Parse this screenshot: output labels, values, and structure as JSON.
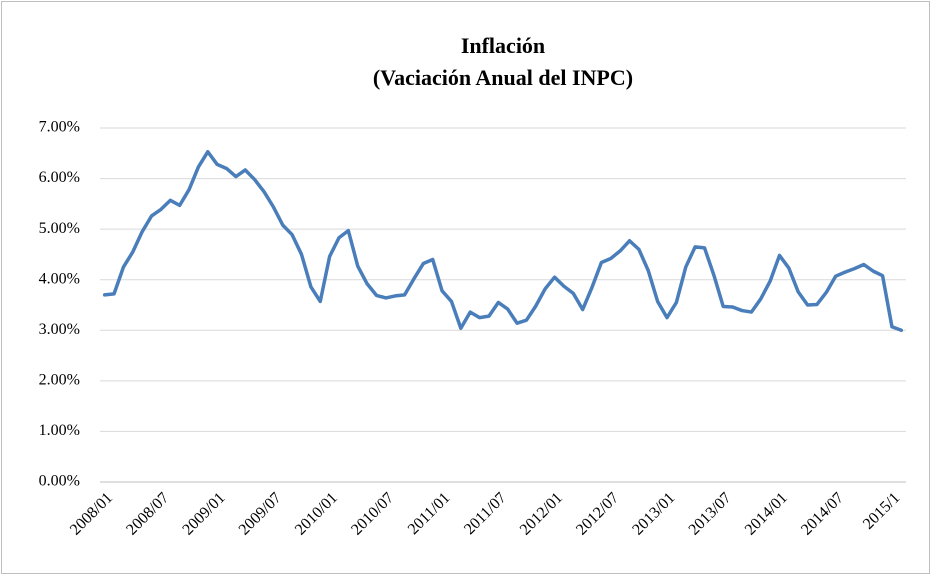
{
  "chart_data": {
    "type": "line",
    "title": "Inflación",
    "subtitle": "(Vaciación Anual del INPC)",
    "categories": [
      "2008/01",
      null,
      null,
      null,
      null,
      null,
      "2008/07",
      null,
      null,
      null,
      null,
      null,
      "2009/01",
      null,
      null,
      null,
      null,
      null,
      "2009/07",
      null,
      null,
      null,
      null,
      null,
      "2010/01",
      null,
      null,
      null,
      null,
      null,
      "2010/07",
      null,
      null,
      null,
      null,
      null,
      "2011/01",
      null,
      null,
      null,
      null,
      null,
      "2011/07",
      null,
      null,
      null,
      null,
      null,
      "2012/01",
      null,
      null,
      null,
      null,
      null,
      "2012/07",
      null,
      null,
      null,
      null,
      null,
      "2013/01",
      null,
      null,
      null,
      null,
      null,
      "2013/07",
      null,
      null,
      null,
      null,
      null,
      "2014/01",
      null,
      null,
      null,
      null,
      null,
      "2014/07",
      null,
      null,
      null,
      null,
      null,
      "2015/1",
      null
    ],
    "series": [
      {
        "name": "Inflación",
        "color": "#4a7ebb",
        "values": [
          3.7,
          3.72,
          4.25,
          4.55,
          4.95,
          5.26,
          5.39,
          5.57,
          5.47,
          5.78,
          6.23,
          6.53,
          6.28,
          6.2,
          6.04,
          6.17,
          5.98,
          5.74,
          5.44,
          5.08,
          4.89,
          4.5,
          3.86,
          3.57,
          4.46,
          4.83,
          4.97,
          4.27,
          3.92,
          3.69,
          3.64,
          3.68,
          3.7,
          4.02,
          4.32,
          4.4,
          3.78,
          3.57,
          3.04,
          3.36,
          3.25,
          3.28,
          3.55,
          3.42,
          3.14,
          3.2,
          3.48,
          3.82,
          4.05,
          3.87,
          3.73,
          3.41,
          3.85,
          4.34,
          4.42,
          4.57,
          4.77,
          4.6,
          4.18,
          3.57,
          3.25,
          3.55,
          4.25,
          4.65,
          4.63,
          4.09,
          3.47,
          3.46,
          3.39,
          3.36,
          3.62,
          3.97,
          4.48,
          4.23,
          3.76,
          3.5,
          3.51,
          3.75,
          4.07,
          4.15,
          4.22,
          4.3,
          4.17,
          4.08,
          3.07,
          3.0
        ]
      }
    ],
    "ylim": [
      0,
      7
    ],
    "yticks": [
      {
        "value": 0,
        "label": "0.00%"
      },
      {
        "value": 1,
        "label": "1.00%"
      },
      {
        "value": 2,
        "label": "2.00%"
      },
      {
        "value": 3,
        "label": "3.00%"
      },
      {
        "value": 4,
        "label": "4.00%"
      },
      {
        "value": 5,
        "label": "5.00%"
      },
      {
        "value": 6,
        "label": "6.00%"
      },
      {
        "value": 7,
        "label": "7.00%"
      }
    ],
    "grid": true
  }
}
